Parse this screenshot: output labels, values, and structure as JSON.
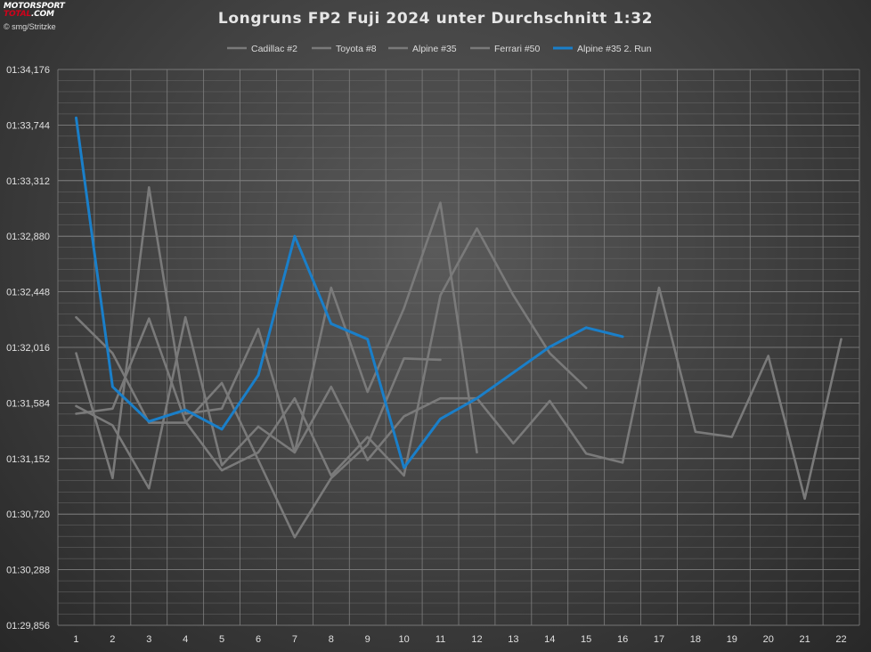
{
  "header": {
    "logo_line1": "MOTORSPORT",
    "logo_line2a": "TOTAL",
    "logo_line2b": ".COM",
    "credit": "© smg/Stritzke"
  },
  "chart_data": {
    "type": "line",
    "title": "Longruns FP2 Fuji 2024 unter Durchschnitt 1:32",
    "xlabel": "",
    "ylabel": "",
    "x": [
      1,
      2,
      3,
      4,
      5,
      6,
      7,
      8,
      9,
      10,
      11,
      12,
      13,
      14,
      15,
      16,
      17,
      18,
      19,
      20,
      21,
      22
    ],
    "y_ticks": [
      "01:29,856",
      "01:30,288",
      "01:30,720",
      "01:31,152",
      "01:31,584",
      "01:32,016",
      "01:32,448",
      "01:32,880",
      "01:33,312",
      "01:33,744",
      "01:34,176"
    ],
    "ylim": [
      89.856,
      94.176
    ],
    "grid": true,
    "legend_position": "top",
    "series": [
      {
        "name": "Cadillac #2",
        "color": "#7a7a7a",
        "values": [
          91.5,
          91.54,
          92.24,
          91.44,
          91.06,
          91.2,
          91.62,
          91.02,
          91.32,
          91.02,
          92.42,
          92.94,
          92.42,
          91.97,
          91.7,
          null,
          null,
          null,
          null,
          null,
          null,
          null
        ]
      },
      {
        "name": "Toyota #8",
        "color": "#7a7a7a",
        "values": [
          91.97,
          91.0,
          93.26,
          91.5,
          91.54,
          92.16,
          91.2,
          92.48,
          91.67,
          92.32,
          93.14,
          91.2,
          null,
          null,
          null,
          null,
          null,
          null,
          null,
          null,
          null,
          null
        ]
      },
      {
        "name": "Alpine #35",
        "color": "#7a7a7a",
        "values": [
          91.56,
          91.41,
          90.92,
          92.25,
          91.1,
          91.4,
          91.2,
          91.71,
          91.14,
          91.48,
          91.62,
          91.62,
          91.27,
          91.6,
          91.19,
          91.12,
          92.48,
          91.36,
          91.32,
          91.95,
          90.84,
          92.08
        ]
      },
      {
        "name": "Ferrari #50",
        "color": "#7a7a7a",
        "values": [
          92.25,
          91.97,
          91.43,
          91.43,
          91.74,
          91.14,
          90.54,
          91.0,
          91.26,
          91.93,
          91.92,
          null,
          null,
          null,
          null,
          null,
          null,
          null,
          null,
          null,
          null,
          null
        ]
      },
      {
        "name": "Alpine #35 2. Run",
        "color": "#1a7fc9",
        "values": [
          93.8,
          91.71,
          91.44,
          91.53,
          91.38,
          91.8,
          92.88,
          92.2,
          92.08,
          91.08,
          91.46,
          91.62,
          91.82,
          92.02,
          92.17,
          92.1,
          null,
          null,
          null,
          null,
          null,
          null
        ]
      }
    ]
  }
}
